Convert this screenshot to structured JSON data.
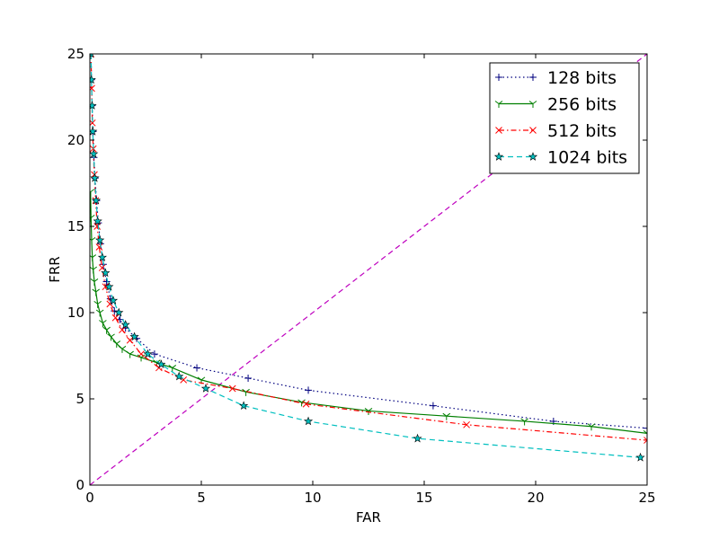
{
  "chart_data": {
    "type": "line",
    "title": "",
    "xlabel": "FAR",
    "ylabel": "FRR",
    "xlim": [
      0,
      25
    ],
    "ylim": [
      0,
      25
    ],
    "xticks": [
      0,
      5,
      10,
      15,
      20,
      25
    ],
    "yticks": [
      0,
      5,
      10,
      15,
      20,
      25
    ],
    "grid": false,
    "legend_position": "top-right",
    "reference_line": {
      "x": [
        0,
        25
      ],
      "y": [
        0,
        25
      ],
      "color": "#bf00bf",
      "style": "dashed"
    },
    "series": [
      {
        "name": "128 bits",
        "color": "#00007f",
        "line_style": "dotted",
        "marker": "plus",
        "x": [
          0.05,
          0.07,
          0.1,
          0.14,
          0.18,
          0.23,
          0.3,
          0.38,
          0.48,
          0.6,
          0.75,
          0.92,
          1.1,
          1.35,
          1.6,
          2.1,
          2.9,
          4.8,
          7.1,
          9.8,
          15.4,
          20.8,
          25
        ],
        "y": [
          25,
          23.5,
          22,
          20.5,
          19,
          17.8,
          16.5,
          15.2,
          14,
          12.8,
          11.8,
          10.8,
          10.1,
          9.6,
          9.1,
          8.5,
          7.6,
          6.8,
          6.2,
          5.5,
          4.6,
          3.7,
          3.3
        ]
      },
      {
        "name": "256 bits",
        "color": "#007f00",
        "line_style": "solid",
        "marker": "tri_down",
        "x": [
          0.03,
          0.05,
          0.08,
          0.11,
          0.15,
          0.2,
          0.27,
          0.35,
          0.45,
          0.58,
          0.75,
          0.95,
          1.2,
          1.45,
          1.8,
          2.3,
          3.0,
          3.7,
          5.0,
          7.0,
          9.5,
          12.5,
          16.0,
          19.5,
          22.5,
          25
        ],
        "y": [
          17,
          15.5,
          14.2,
          13.2,
          12.5,
          11.8,
          11.2,
          10.5,
          10.0,
          9.4,
          9.0,
          8.6,
          8.2,
          7.9,
          7.6,
          7.4,
          7.1,
          6.8,
          6.1,
          5.4,
          4.8,
          4.3,
          4.0,
          3.7,
          3.4,
          3.0
        ]
      },
      {
        "name": "512 bits",
        "color": "#ff0000",
        "line_style": "dashdot",
        "marker": "x",
        "x": [
          0.05,
          0.08,
          0.11,
          0.15,
          0.2,
          0.26,
          0.33,
          0.42,
          0.55,
          0.7,
          0.9,
          1.15,
          1.45,
          1.8,
          2.3,
          3.1,
          4.2,
          6.4,
          9.7,
          16.9,
          25
        ],
        "y": [
          25,
          23,
          21,
          19.5,
          18,
          16.5,
          15,
          13.8,
          12.6,
          11.5,
          10.5,
          9.7,
          9.0,
          8.4,
          7.6,
          6.8,
          6.1,
          5.6,
          4.7,
          3.5,
          2.6
        ]
      },
      {
        "name": "1024 bits",
        "color": "#00bfbf",
        "line_style": "dashed",
        "marker": "star",
        "x": [
          0.05,
          0.07,
          0.1,
          0.13,
          0.17,
          0.22,
          0.28,
          0.35,
          0.45,
          0.56,
          0.7,
          0.86,
          1.05,
          1.3,
          1.6,
          2.0,
          2.6,
          3.2,
          4.0,
          5.2,
          6.9,
          9.8,
          14.7,
          24.7
        ],
        "y": [
          25,
          23.5,
          22,
          20.5,
          19.2,
          17.8,
          16.5,
          15.3,
          14.2,
          13.2,
          12.3,
          11.5,
          10.7,
          10.0,
          9.3,
          8.6,
          7.6,
          7.0,
          6.3,
          5.6,
          4.6,
          3.7,
          2.7,
          1.6
        ]
      }
    ]
  }
}
